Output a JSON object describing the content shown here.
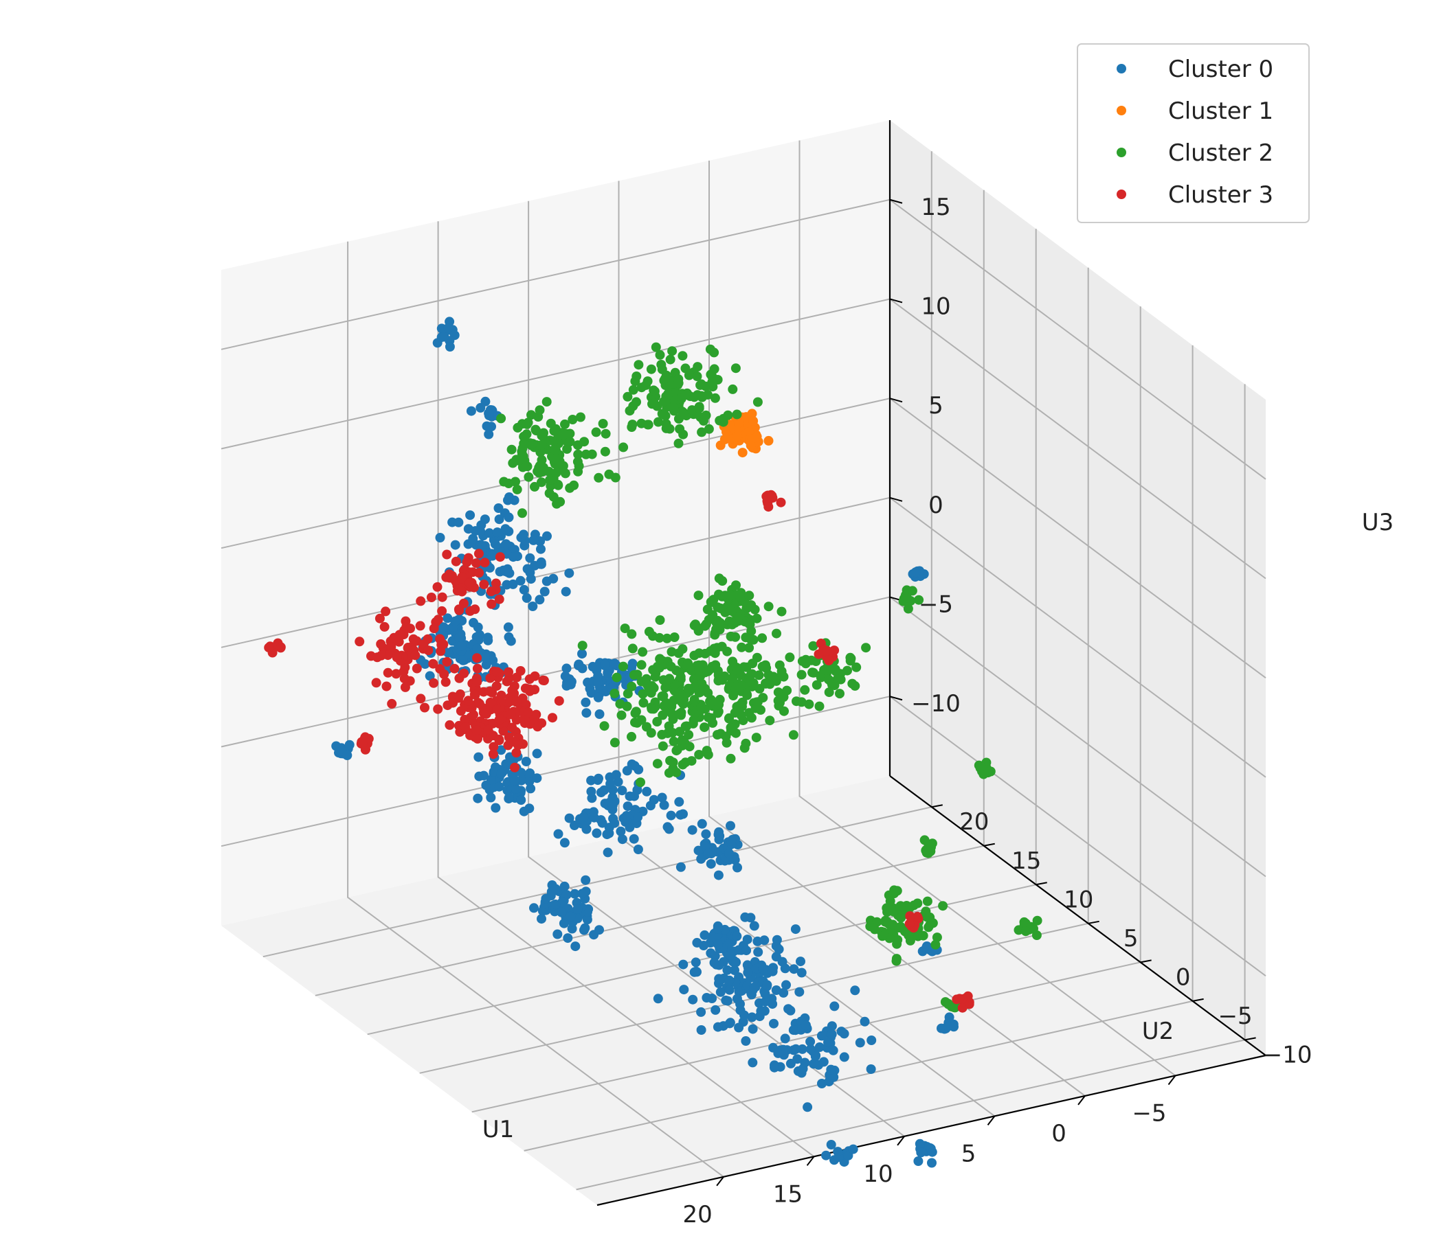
{
  "chart_data": {
    "type": "scatter",
    "projection": "3d",
    "title": "",
    "xlabel": "U1",
    "ylabel": "U2",
    "zlabel": "U3",
    "xlim": [
      -10,
      27
    ],
    "ylim": [
      -12,
      24
    ],
    "zlim": [
      -14,
      19
    ],
    "xticks": [
      -5,
      0,
      5,
      10,
      15,
      20
    ],
    "yticks": [
      -10,
      -5,
      0,
      5,
      10,
      15,
      20
    ],
    "zticks": [
      -10,
      -5,
      0,
      5,
      10,
      15
    ],
    "xtick_labels": [
      "−5",
      "0",
      "5",
      "10",
      "15",
      "20"
    ],
    "ytick_labels": [
      "−10",
      "−5",
      "0",
      "5",
      "10",
      "15",
      "20"
    ],
    "ztick_labels": [
      "−10",
      "−5",
      "0",
      "5",
      "10",
      "15"
    ],
    "grid": true,
    "legend_position": "top-right",
    "series": [
      {
        "name": "Cluster 0",
        "color": "#1f77b4",
        "clusters": [
          {
            "x": 16.5,
            "y": 20.5,
            "z": 15.0,
            "n": 14,
            "spread": 0.3
          },
          {
            "x": 14.8,
            "y": 19.5,
            "z": 11.0,
            "n": 14,
            "spread": 0.3
          },
          {
            "x": 13.0,
            "y": 21.0,
            "z": 3.0,
            "n": 110,
            "spread": 1.2
          },
          {
            "x": 15.5,
            "y": 20.5,
            "z": -1.0,
            "n": 90,
            "spread": 1.0
          },
          {
            "x": 9.5,
            "y": 18.0,
            "z": -3.0,
            "n": 60,
            "spread": 0.8
          },
          {
            "x": 15.5,
            "y": 16.5,
            "z": -6.0,
            "n": 60,
            "spread": 0.8
          },
          {
            "x": 10.0,
            "y": 15.0,
            "z": -8.0,
            "n": 80,
            "spread": 1.2
          },
          {
            "x": 16.0,
            "y": 10.0,
            "z": -10.0,
            "n": 60,
            "spread": 0.8
          },
          {
            "x": 4.5,
            "y": 15.5,
            "z": -11.5,
            "n": 40,
            "spread": 0.6
          },
          {
            "x": 5.5,
            "y": 13.0,
            "z": -15.0,
            "n": 40,
            "spread": 0.6
          },
          {
            "x": 10.0,
            "y": 3.0,
            "z": -12.0,
            "n": 120,
            "spread": 1.5
          },
          {
            "x": 10.0,
            "y": -3.0,
            "z": -13.0,
            "n": 70,
            "spread": 1.2
          },
          {
            "x": 11.5,
            "y": -8.5,
            "z": -16.0,
            "n": 12,
            "spread": 0.3
          },
          {
            "x": -4.5,
            "y": 12.0,
            "z": 2.0,
            "n": 10,
            "spread": 0.2
          },
          {
            "x": 0.5,
            "y": 2.0,
            "z": -12.0,
            "n": 10,
            "spread": 0.2
          },
          {
            "x": 3.0,
            "y": -4.0,
            "z": -13.0,
            "n": 10,
            "spread": 0.2
          },
          {
            "x": 6.5,
            "y": -8.0,
            "z": -17.0,
            "n": 12,
            "spread": 0.3
          },
          {
            "x": 22.0,
            "y": 21.0,
            "z": -5.0,
            "n": 10,
            "spread": 0.2
          }
        ]
      },
      {
        "name": "Cluster 1",
        "color": "#ff7f0e",
        "clusters": [
          {
            "x": -2.0,
            "y": 24.0,
            "z": 5.0,
            "n": 70,
            "spread": 0.5
          }
        ]
      },
      {
        "name": "Cluster 2",
        "color": "#2ca02c",
        "clusters": [
          {
            "x": 4.0,
            "y": 20.0,
            "z": 9.5,
            "n": 120,
            "spread": 1.2
          },
          {
            "x": 10.0,
            "y": 22.0,
            "z": 7.0,
            "n": 120,
            "spread": 1.2
          },
          {
            "x": 3.0,
            "y": 16.5,
            "z": 0.0,
            "n": 70,
            "spread": 0.8
          },
          {
            "x": 7.0,
            "y": 14.0,
            "z": -2.5,
            "n": 260,
            "spread": 1.8
          },
          {
            "x": -2.0,
            "y": 16.0,
            "z": -4.0,
            "n": 45,
            "spread": 0.8
          },
          {
            "x": 1.5,
            "y": 16.5,
            "z": -4.0,
            "n": 50,
            "spread": 0.8
          },
          {
            "x": -1.0,
            "y": 7.0,
            "z": -13.0,
            "n": 70,
            "spread": 0.8
          },
          {
            "x": -5.0,
            "y": 13.5,
            "z": 0.0,
            "n": 10,
            "spread": 0.2
          },
          {
            "x": 1.0,
            "y": 19.0,
            "z": -2.0,
            "n": 10,
            "spread": 0.2
          },
          {
            "x": -6.5,
            "y": 9.0,
            "z": -7.0,
            "n": 10,
            "spread": 0.2
          },
          {
            "x": -3.0,
            "y": 8.0,
            "z": -10.0,
            "n": 10,
            "spread": 0.2
          },
          {
            "x": -5.5,
            "y": 3.0,
            "z": -12.5,
            "n": 10,
            "spread": 0.2
          },
          {
            "x": -2.0,
            "y": 4.0,
            "z": -16.0,
            "n": 10,
            "spread": 0.2
          }
        ]
      },
      {
        "name": "Cluster 3",
        "color": "#d62728",
        "clusters": [
          {
            "x": 18.5,
            "y": 15.5,
            "z": 4.5,
            "n": 50,
            "spread": 0.8
          },
          {
            "x": 21.5,
            "y": 15.5,
            "z": 2.0,
            "n": 70,
            "spread": 1.0
          },
          {
            "x": 20.0,
            "y": 10.0,
            "z": 1.0,
            "n": 150,
            "spread": 1.3
          },
          {
            "x": 24.5,
            "y": 23.0,
            "z": 0.0,
            "n": 10,
            "spread": 0.2
          },
          {
            "x": 24.5,
            "y": 14.5,
            "z": -1.5,
            "n": 10,
            "spread": 0.2
          },
          {
            "x": -1.5,
            "y": 20.5,
            "z": 3.0,
            "n": 10,
            "spread": 0.2
          },
          {
            "x": -3.0,
            "y": 18.0,
            "z": -4.0,
            "n": 10,
            "spread": 0.2
          },
          {
            "x": -1.5,
            "y": 7.0,
            "z": -13.0,
            "n": 8,
            "spread": 0.2
          },
          {
            "x": -1.5,
            "y": 2.0,
            "z": -15.0,
            "n": 10,
            "spread": 0.2
          }
        ]
      }
    ]
  }
}
